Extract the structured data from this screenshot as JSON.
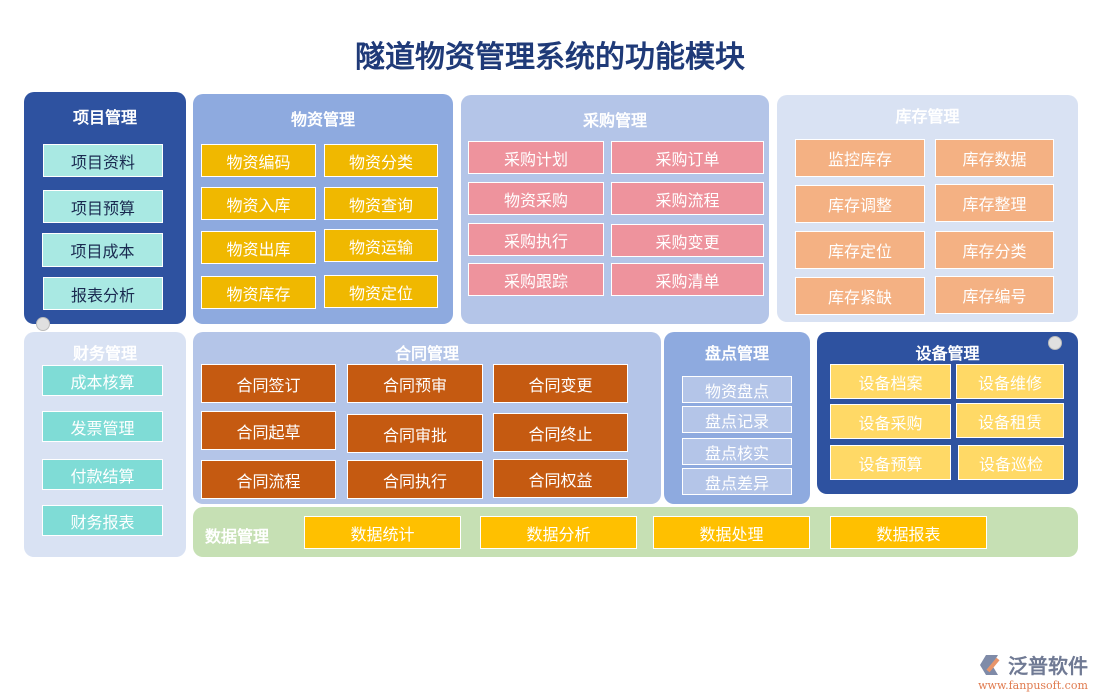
{
  "title": "隧道物资管理系统的功能模块",
  "modules": {
    "project": {
      "title": "项目管理",
      "items": [
        "项目资料",
        "项目预算",
        "项目成本",
        "报表分析"
      ]
    },
    "material": {
      "title": "物资管理",
      "items": [
        "物资编码",
        "物资分类",
        "物资入库",
        "物资查询",
        "物资出库",
        "物资运输",
        "物资库存",
        "物资定位"
      ]
    },
    "purchase": {
      "title": "采购管理",
      "items": [
        "采购计划",
        "采购订单",
        "物资采购",
        "采购流程",
        "采购执行",
        "采购变更",
        "采购跟踪",
        "采购清单"
      ]
    },
    "inventory": {
      "title": "库存管理",
      "items": [
        "监控库存",
        "库存数据",
        "库存调整",
        "库存整理",
        "库存定位",
        "库存分类",
        "库存紧缺",
        "库存编号"
      ]
    },
    "finance": {
      "title": "财务管理",
      "items": [
        "成本核算",
        "发票管理",
        "付款结算",
        "财务报表"
      ]
    },
    "contract": {
      "title": "合同管理",
      "items": [
        "合同签订",
        "合同预审",
        "合同变更",
        "合同起草",
        "合同审批",
        "合同终止",
        "合同流程",
        "合同执行",
        "合同权益"
      ]
    },
    "stocktake": {
      "title": "盘点管理",
      "items": [
        "物资盘点",
        "盘点记录",
        "盘点核实",
        "盘点差异"
      ]
    },
    "equipment": {
      "title": "设备管理",
      "items": [
        "设备档案",
        "设备维修",
        "设备采购",
        "设备租赁",
        "设备预算",
        "设备巡检"
      ]
    },
    "data": {
      "title": "数据管理",
      "items": [
        "数据统计",
        "数据分析",
        "数据处理",
        "数据报表"
      ]
    }
  },
  "logo": {
    "name": "泛普软件",
    "url": "www.fanpusoft.com"
  }
}
